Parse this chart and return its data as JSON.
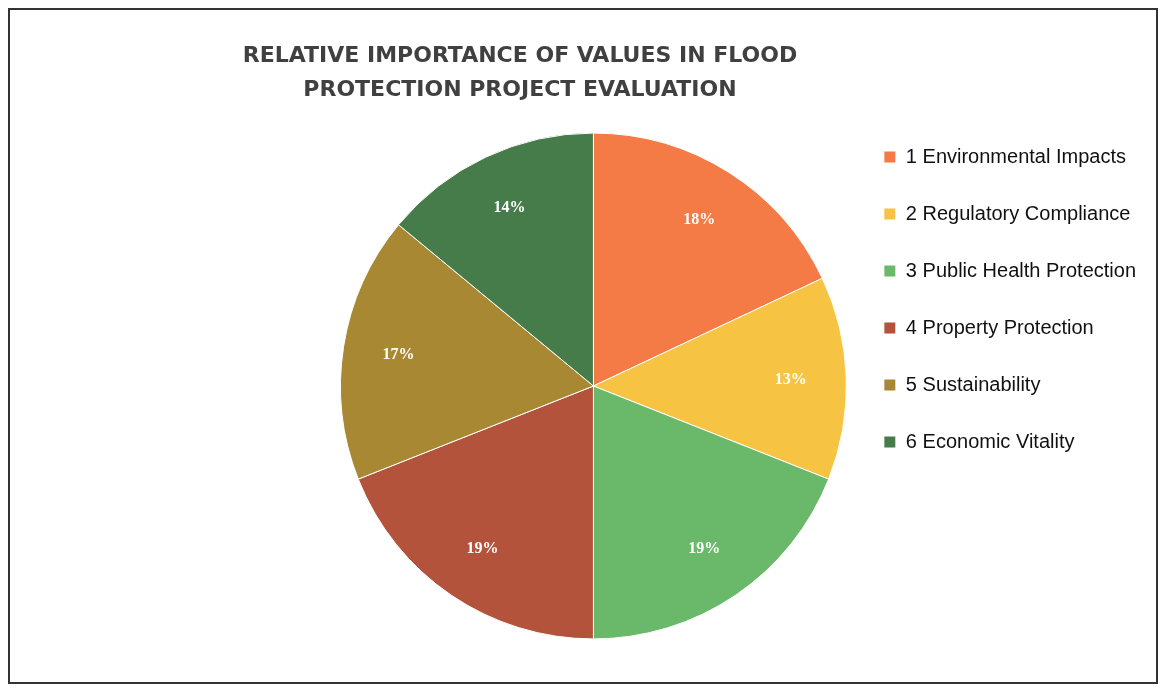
{
  "chart_data": {
    "type": "pie",
    "title": "RELATIVE IMPORTANCE OF VALUES IN FLOOD PROTECTION PROJECT EVALUATION",
    "categories": [
      "1 Environmental Impacts",
      "2 Regulatory Compliance",
      "3 Public Health Protection",
      "4 Property Protection",
      "5 Sustainability",
      "6 Economic Vitality"
    ],
    "values": [
      18,
      13,
      19,
      19,
      17,
      14
    ],
    "value_labels": [
      "18%",
      "13%",
      "19%",
      "19%",
      "17%",
      "14%"
    ],
    "colors": [
      "#f47b45",
      "#f6c343",
      "#6ab96a",
      "#b4533c",
      "#a88832",
      "#457c4a"
    ],
    "legend": "right"
  }
}
